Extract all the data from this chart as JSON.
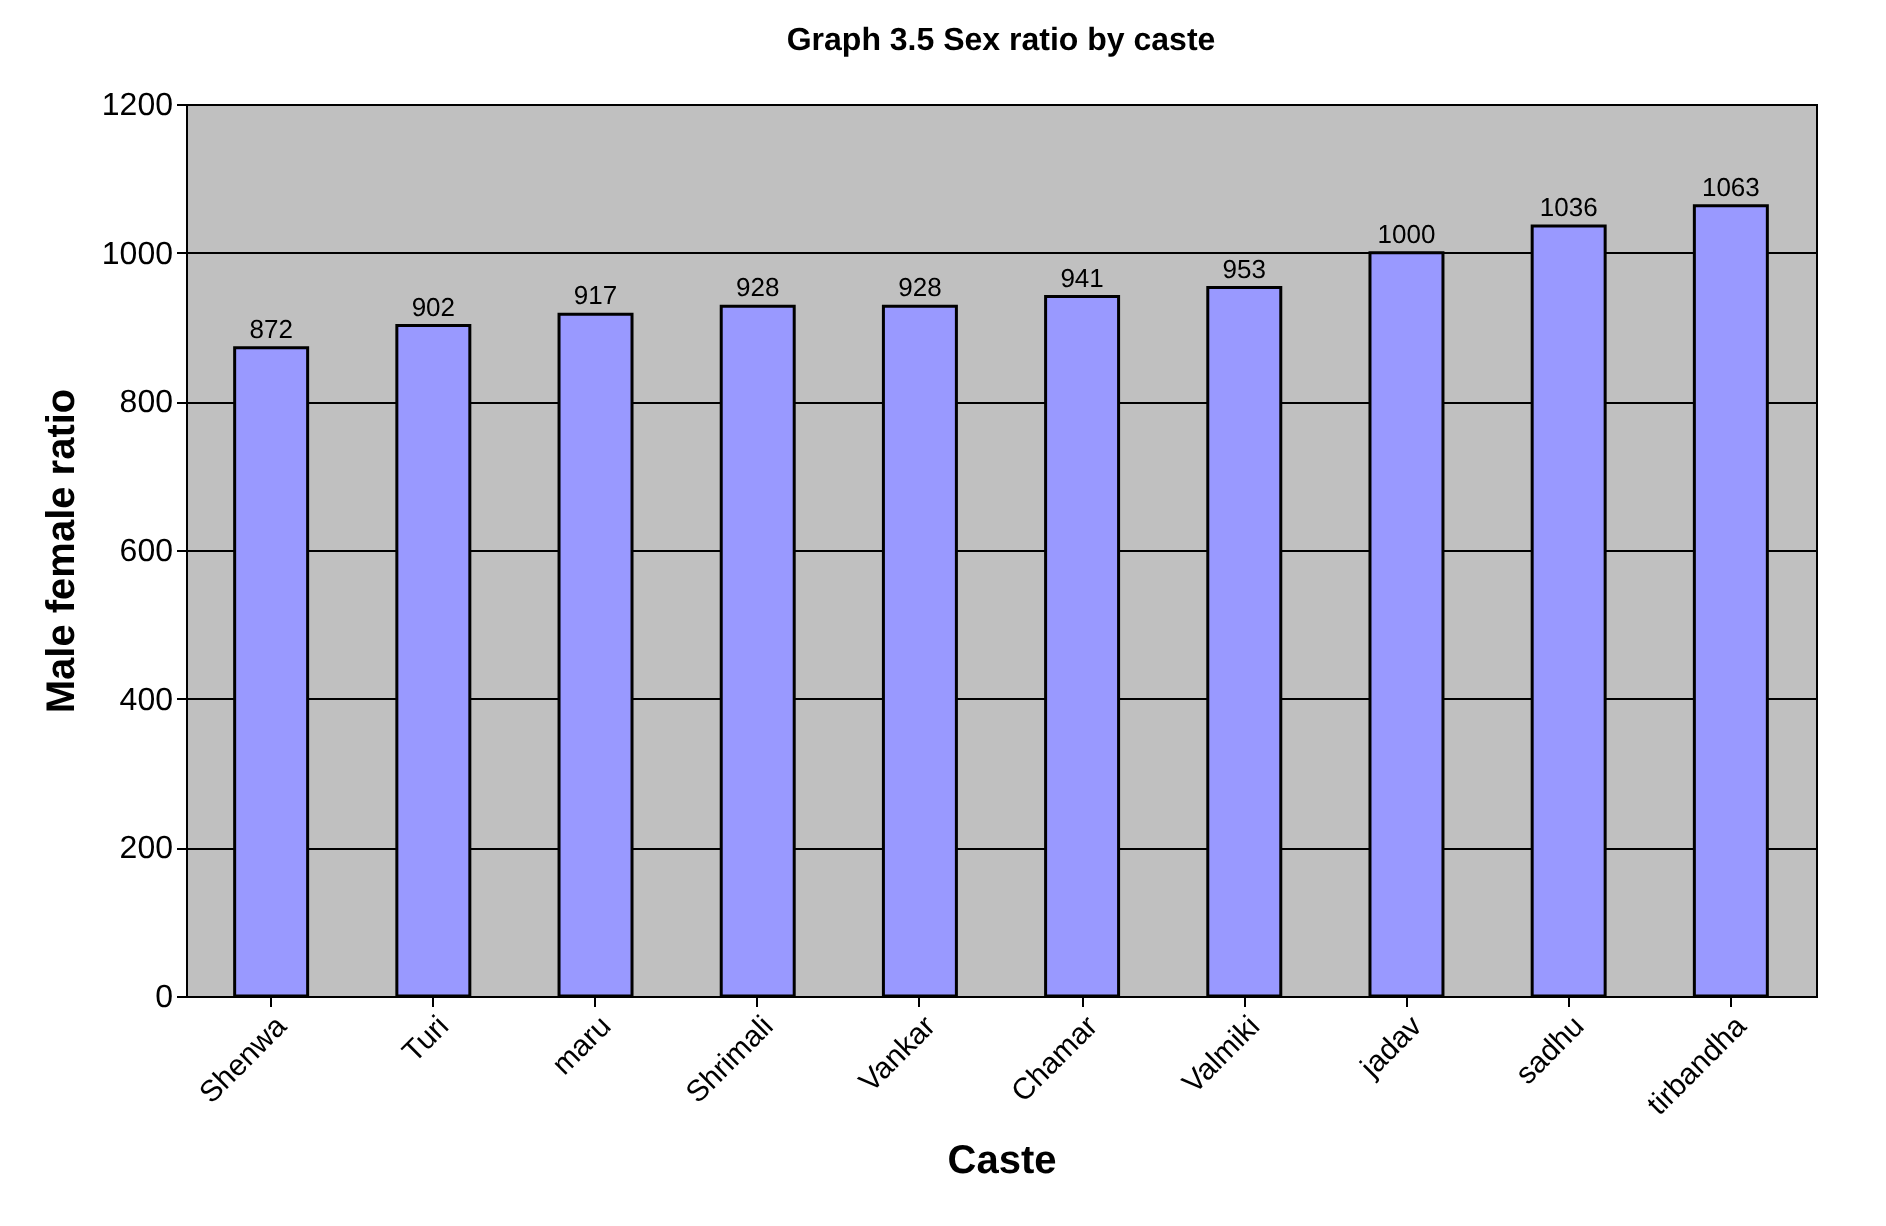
{
  "chart_data": {
    "type": "bar",
    "title": "Graph 3.5 Sex ratio by caste",
    "xlabel": "Caste",
    "ylabel": "Male female ratio",
    "categories": [
      "Shenwa",
      "Turi",
      "maru",
      "Shrimali",
      "Vankar",
      "Chamar",
      "Valmiki",
      "jadav",
      "sadhu",
      "tirbandha"
    ],
    "values": [
      872,
      902,
      917,
      928,
      928,
      941,
      953,
      1000,
      1036,
      1063
    ],
    "color": "#9999ff",
    "ylim": [
      0,
      1200
    ],
    "yticks": [
      0,
      200,
      400,
      600,
      800,
      1000,
      1200
    ],
    "grid": "y",
    "data_labels": true
  }
}
